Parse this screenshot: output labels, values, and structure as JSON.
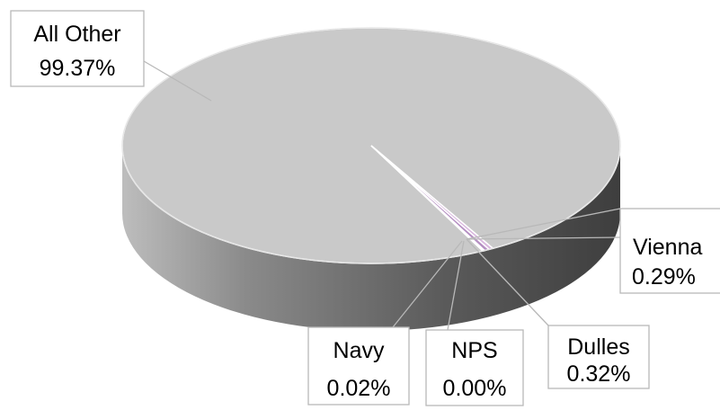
{
  "chart_data": {
    "type": "pie",
    "style": "3d",
    "slices": [
      {
        "label": "All Other",
        "value": 99.37,
        "display": "99.37%",
        "color": "#c9c9c9"
      },
      {
        "label": "Vienna",
        "value": 0.29,
        "display": "0.29%",
        "color": "#d9b8de"
      },
      {
        "label": "Dulles",
        "value": 0.32,
        "display": "0.32%",
        "color": "#b58fc2"
      },
      {
        "label": "NPS",
        "value": 0.0,
        "display": "0.00%",
        "color": "#8f8f8f"
      },
      {
        "label": "Navy",
        "value": 0.02,
        "display": "0.02%",
        "color": "#e6e6e6"
      }
    ],
    "legend": "none",
    "data_labels": "callouts"
  }
}
